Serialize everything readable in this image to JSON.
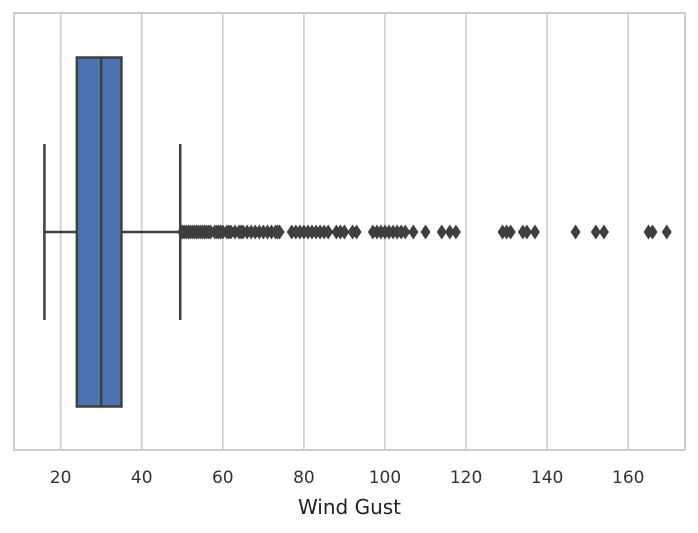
{
  "chart_data": {
    "type": "boxplot",
    "orientation": "horizontal",
    "title": "",
    "xlabel": "Wind Gust",
    "ylabel": "",
    "xlim": [
      8.5,
      174
    ],
    "xticks": [
      20,
      40,
      60,
      80,
      100,
      120,
      140,
      160
    ],
    "grid": "vertical",
    "box": {
      "whisker_low": 16,
      "q1": 24,
      "median": 30,
      "q3": 35,
      "whisker_high": 49.5,
      "fill_color": "#4c72b0",
      "line_color": "#3f3f3f"
    },
    "outliers": [
      50,
      50.5,
      51,
      51.5,
      52,
      52.5,
      53,
      53.5,
      54,
      54.5,
      55,
      55.5,
      56,
      56.5,
      57,
      58,
      58.5,
      59,
      59.5,
      60,
      61,
      61.5,
      62,
      63,
      64,
      64.5,
      65,
      66,
      67,
      68,
      69,
      70,
      71,
      72,
      73,
      73.5,
      74,
      77,
      78,
      79,
      80,
      81,
      82,
      83,
      84,
      85,
      86,
      88,
      89,
      90,
      92,
      93,
      97,
      98,
      99,
      100,
      101,
      102,
      103,
      104,
      105,
      107,
      110,
      114,
      116,
      117.5,
      129,
      130,
      131,
      134,
      135,
      137,
      147,
      152,
      154,
      165,
      166,
      169.5
    ],
    "outlier_color": "#3f3f3f",
    "grid_color": "#cccccc",
    "frame_color": "#cccccc"
  }
}
